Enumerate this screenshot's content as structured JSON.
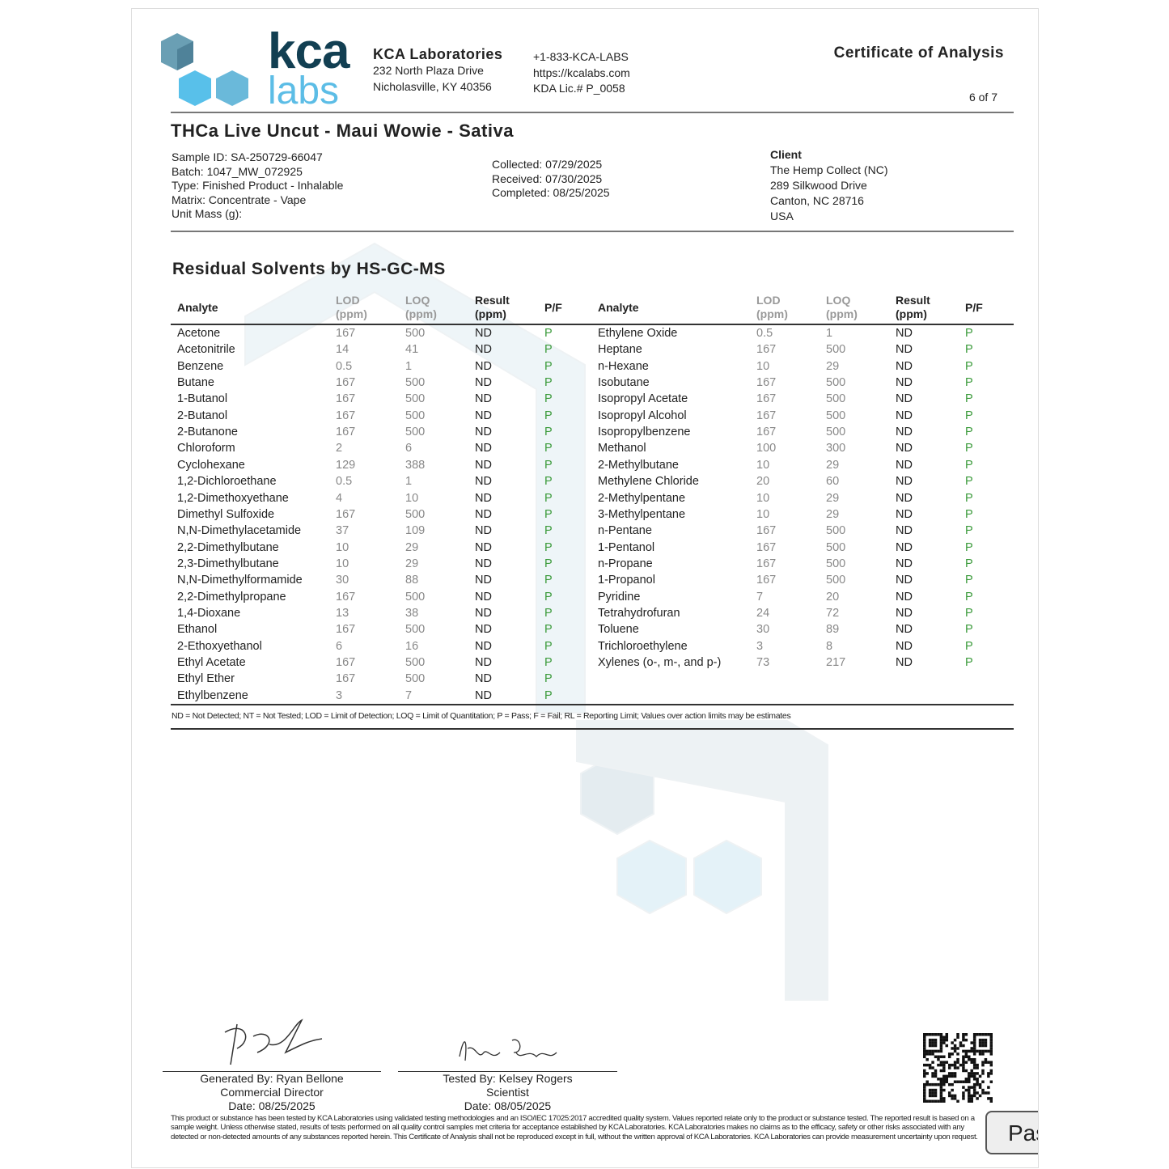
{
  "logo": {
    "top": "kca",
    "bottom": "labs"
  },
  "lab": {
    "name": "KCA Laboratories",
    "address1": "232 North Plaza Drive",
    "address2": "Nicholasville, KY 40356",
    "phone": "+1-833-KCA-LABS",
    "website": "https://kcalabs.com",
    "license": "KDA Lic.# P_0058"
  },
  "doc": {
    "title": "Certificate of Analysis",
    "page": "6 of 7"
  },
  "product": {
    "name": "THCa Live Uncut - Maui Wowie - Sativa",
    "sample_id": "Sample ID: SA-250729-66047",
    "batch": "Batch: 1047_MW_072925",
    "type": "Type: Finished Product - Inhalable",
    "matrix": "Matrix: Concentrate - Vape",
    "unit_mass": "Unit Mass (g):",
    "collected": "Collected: 07/29/2025",
    "received": "Received: 07/30/2025",
    "completed": "Completed: 08/25/2025"
  },
  "client": {
    "label": "Client",
    "name": "The Hemp Collect (NC)",
    "address1": "289 Silkwood Drive",
    "address2": "Canton, NC 28716",
    "country": "USA"
  },
  "section": {
    "title": "Residual Solvents by HS-GC-MS",
    "headers": {
      "analyte": "Analyte",
      "lod": "LOD",
      "loq": "LOQ",
      "result": "Result",
      "ppm": "(ppm)",
      "pf": "P/F"
    },
    "left": [
      [
        "Acetone",
        "167",
        "500",
        "ND",
        "P"
      ],
      [
        "Acetonitrile",
        "14",
        "41",
        "ND",
        "P"
      ],
      [
        "Benzene",
        "0.5",
        "1",
        "ND",
        "P"
      ],
      [
        "Butane",
        "167",
        "500",
        "ND",
        "P"
      ],
      [
        "1-Butanol",
        "167",
        "500",
        "ND",
        "P"
      ],
      [
        "2-Butanol",
        "167",
        "500",
        "ND",
        "P"
      ],
      [
        "2-Butanone",
        "167",
        "500",
        "ND",
        "P"
      ],
      [
        "Chloroform",
        "2",
        "6",
        "ND",
        "P"
      ],
      [
        "Cyclohexane",
        "129",
        "388",
        "ND",
        "P"
      ],
      [
        "1,2-Dichloroethane",
        "0.5",
        "1",
        "ND",
        "P"
      ],
      [
        "1,2-Dimethoxyethane",
        "4",
        "10",
        "ND",
        "P"
      ],
      [
        "Dimethyl Sulfoxide",
        "167",
        "500",
        "ND",
        "P"
      ],
      [
        "N,N-Dimethylacetamide",
        "37",
        "109",
        "ND",
        "P"
      ],
      [
        "2,2-Dimethylbutane",
        "10",
        "29",
        "ND",
        "P"
      ],
      [
        "2,3-Dimethylbutane",
        "10",
        "29",
        "ND",
        "P"
      ],
      [
        "N,N-Dimethylformamide",
        "30",
        "88",
        "ND",
        "P"
      ],
      [
        "2,2-Dimethylpropane",
        "167",
        "500",
        "ND",
        "P"
      ],
      [
        "1,4-Dioxane",
        "13",
        "38",
        "ND",
        "P"
      ],
      [
        "Ethanol",
        "167",
        "500",
        "ND",
        "P"
      ],
      [
        "2-Ethoxyethanol",
        "6",
        "16",
        "ND",
        "P"
      ],
      [
        "Ethyl Acetate",
        "167",
        "500",
        "ND",
        "P"
      ],
      [
        "Ethyl Ether",
        "167",
        "500",
        "ND",
        "P"
      ],
      [
        "Ethylbenzene",
        "3",
        "7",
        "ND",
        "P"
      ]
    ],
    "right": [
      [
        "Ethylene Oxide",
        "0.5",
        "1",
        "ND",
        "P"
      ],
      [
        "Heptane",
        "167",
        "500",
        "ND",
        "P"
      ],
      [
        "n-Hexane",
        "10",
        "29",
        "ND",
        "P"
      ],
      [
        "Isobutane",
        "167",
        "500",
        "ND",
        "P"
      ],
      [
        "Isopropyl Acetate",
        "167",
        "500",
        "ND",
        "P"
      ],
      [
        "Isopropyl Alcohol",
        "167",
        "500",
        "ND",
        "P"
      ],
      [
        "Isopropylbenzene",
        "167",
        "500",
        "ND",
        "P"
      ],
      [
        "Methanol",
        "100",
        "300",
        "ND",
        "P"
      ],
      [
        "2-Methylbutane",
        "10",
        "29",
        "ND",
        "P"
      ],
      [
        "Methylene Chloride",
        "20",
        "60",
        "ND",
        "P"
      ],
      [
        "2-Methylpentane",
        "10",
        "29",
        "ND",
        "P"
      ],
      [
        "3-Methylpentane",
        "10",
        "29",
        "ND",
        "P"
      ],
      [
        "n-Pentane",
        "167",
        "500",
        "ND",
        "P"
      ],
      [
        "1-Pentanol",
        "167",
        "500",
        "ND",
        "P"
      ],
      [
        "n-Propane",
        "167",
        "500",
        "ND",
        "P"
      ],
      [
        "1-Propanol",
        "167",
        "500",
        "ND",
        "P"
      ],
      [
        "Pyridine",
        "7",
        "20",
        "ND",
        "P"
      ],
      [
        "Tetrahydrofuran",
        "24",
        "72",
        "ND",
        "P"
      ],
      [
        "Toluene",
        "30",
        "89",
        "ND",
        "P"
      ],
      [
        "Trichloroethylene",
        "3",
        "8",
        "ND",
        "P"
      ],
      [
        "Xylenes (o-, m-, and p-)",
        "73",
        "217",
        "ND",
        "P"
      ]
    ],
    "note": "ND = Not Detected; NT = Not Tested; LOD = Limit of Detection; LOQ = Limit of Quantitation; P = Pass; F = Fail; RL = Reporting Limit; Values over action limits may be estimates"
  },
  "signatures": [
    {
      "line1": "Generated By: Ryan Bellone",
      "line2": "Commercial Director",
      "line3": "Date: 08/25/2025"
    },
    {
      "line1": "Tested By: Kelsey Rogers",
      "line2": "Scientist",
      "line3": "Date: 08/05/2025"
    }
  ],
  "disclaimer": "This product or substance has been tested by KCA Laboratories using validated testing methodologies and an ISO/IEC 17025:2017 accredited quality system. Values reported relate only to the product or substance tested. The reported result is based on a sample weight. Unless otherwise stated, results of tests performed on all quality control samples met criteria for acceptance established by KCA Laboratories. KCA Laboratories makes no claims as to the efficacy, safety or other risks associated with any detected or non-detected amounts of any substances reported herein. This Certificate of Analysis shall not be reproduced except in full, without the written approval of KCA Laboratories. KCA Laboratories can provide measurement uncertainty upon request.",
  "pass_badge": "Pass",
  "colors": {
    "pass": "#3a9a3a",
    "brand_dark": "#123f52",
    "brand_light": "#5cbde6"
  }
}
